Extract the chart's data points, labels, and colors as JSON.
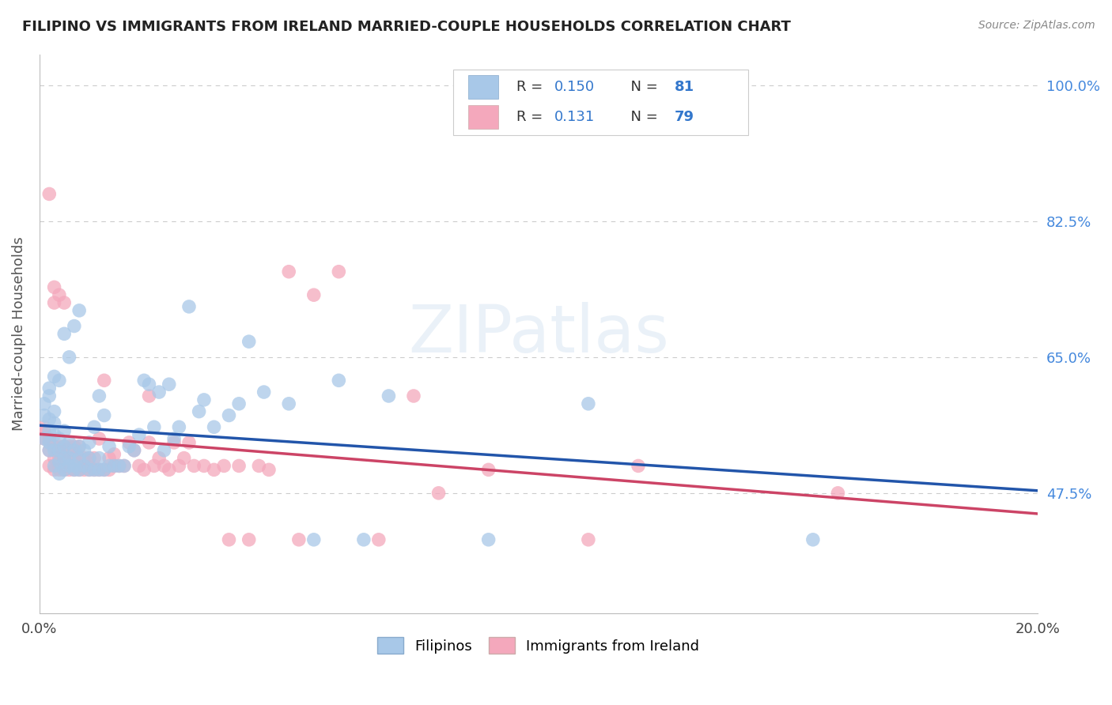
{
  "title": "FILIPINO VS IMMIGRANTS FROM IRELAND MARRIED-COUPLE HOUSEHOLDS CORRELATION CHART",
  "source": "Source: ZipAtlas.com",
  "ylabel": "Married-couple Households",
  "xlim": [
    0.0,
    0.2
  ],
  "ylim": [
    0.32,
    1.04
  ],
  "R_filipino": 0.15,
  "N_filipino": 81,
  "R_ireland": 0.131,
  "N_ireland": 79,
  "color_filipino": "#A8C8E8",
  "color_ireland": "#F4A8BC",
  "line_color_filipino": "#2255AA",
  "line_color_ireland": "#CC4466",
  "watermark": "ZIPatlas",
  "ytick_positions": [
    0.475,
    0.65,
    0.825,
    1.0
  ],
  "ytick_labels": [
    "47.5%",
    "65.0%",
    "82.5%",
    "100.0%"
  ],
  "filipino_x": [
    0.001,
    0.001,
    0.001,
    0.002,
    0.002,
    0.002,
    0.002,
    0.002,
    0.002,
    0.003,
    0.003,
    0.003,
    0.003,
    0.003,
    0.003,
    0.004,
    0.004,
    0.004,
    0.004,
    0.004,
    0.005,
    0.005,
    0.005,
    0.005,
    0.005,
    0.006,
    0.006,
    0.006,
    0.006,
    0.007,
    0.007,
    0.007,
    0.007,
    0.008,
    0.008,
    0.008,
    0.008,
    0.009,
    0.009,
    0.01,
    0.01,
    0.01,
    0.011,
    0.011,
    0.012,
    0.012,
    0.012,
    0.013,
    0.013,
    0.014,
    0.014,
    0.015,
    0.016,
    0.017,
    0.018,
    0.019,
    0.02,
    0.021,
    0.022,
    0.023,
    0.024,
    0.025,
    0.026,
    0.027,
    0.028,
    0.03,
    0.032,
    0.033,
    0.035,
    0.038,
    0.04,
    0.042,
    0.045,
    0.05,
    0.055,
    0.06,
    0.065,
    0.07,
    0.09,
    0.11,
    0.155
  ],
  "filipino_y": [
    0.575,
    0.59,
    0.545,
    0.53,
    0.54,
    0.555,
    0.57,
    0.6,
    0.61,
    0.51,
    0.53,
    0.55,
    0.565,
    0.58,
    0.625,
    0.5,
    0.515,
    0.53,
    0.545,
    0.62,
    0.505,
    0.52,
    0.535,
    0.555,
    0.68,
    0.51,
    0.52,
    0.54,
    0.65,
    0.505,
    0.51,
    0.53,
    0.69,
    0.505,
    0.52,
    0.535,
    0.71,
    0.51,
    0.53,
    0.505,
    0.52,
    0.54,
    0.505,
    0.56,
    0.505,
    0.52,
    0.6,
    0.505,
    0.575,
    0.51,
    0.535,
    0.51,
    0.51,
    0.51,
    0.535,
    0.53,
    0.55,
    0.62,
    0.615,
    0.56,
    0.605,
    0.53,
    0.615,
    0.545,
    0.56,
    0.715,
    0.58,
    0.595,
    0.56,
    0.575,
    0.59,
    0.67,
    0.605,
    0.59,
    0.415,
    0.62,
    0.415,
    0.6,
    0.415,
    0.59,
    0.415
  ],
  "ireland_x": [
    0.001,
    0.001,
    0.001,
    0.002,
    0.002,
    0.002,
    0.002,
    0.003,
    0.003,
    0.003,
    0.003,
    0.003,
    0.004,
    0.004,
    0.004,
    0.004,
    0.005,
    0.005,
    0.005,
    0.005,
    0.006,
    0.006,
    0.006,
    0.007,
    0.007,
    0.007,
    0.008,
    0.008,
    0.008,
    0.009,
    0.009,
    0.01,
    0.01,
    0.011,
    0.011,
    0.012,
    0.012,
    0.013,
    0.013,
    0.014,
    0.014,
    0.015,
    0.015,
    0.016,
    0.017,
    0.018,
    0.019,
    0.02,
    0.021,
    0.022,
    0.022,
    0.023,
    0.024,
    0.025,
    0.026,
    0.027,
    0.028,
    0.029,
    0.03,
    0.031,
    0.033,
    0.035,
    0.037,
    0.038,
    0.04,
    0.042,
    0.044,
    0.046,
    0.05,
    0.052,
    0.055,
    0.06,
    0.068,
    0.075,
    0.08,
    0.09,
    0.11,
    0.12,
    0.16
  ],
  "ireland_y": [
    0.555,
    0.545,
    0.56,
    0.51,
    0.53,
    0.545,
    0.86,
    0.505,
    0.52,
    0.535,
    0.72,
    0.74,
    0.505,
    0.52,
    0.535,
    0.73,
    0.505,
    0.52,
    0.535,
    0.72,
    0.505,
    0.52,
    0.535,
    0.505,
    0.52,
    0.535,
    0.505,
    0.52,
    0.535,
    0.505,
    0.52,
    0.505,
    0.52,
    0.505,
    0.52,
    0.505,
    0.545,
    0.505,
    0.62,
    0.505,
    0.52,
    0.51,
    0.525,
    0.51,
    0.51,
    0.54,
    0.53,
    0.51,
    0.505,
    0.54,
    0.6,
    0.51,
    0.52,
    0.51,
    0.505,
    0.54,
    0.51,
    0.52,
    0.54,
    0.51,
    0.51,
    0.505,
    0.51,
    0.415,
    0.51,
    0.415,
    0.51,
    0.505,
    0.76,
    0.415,
    0.73,
    0.76,
    0.415,
    0.6,
    0.475,
    0.505,
    0.415,
    0.51,
    0.475
  ]
}
